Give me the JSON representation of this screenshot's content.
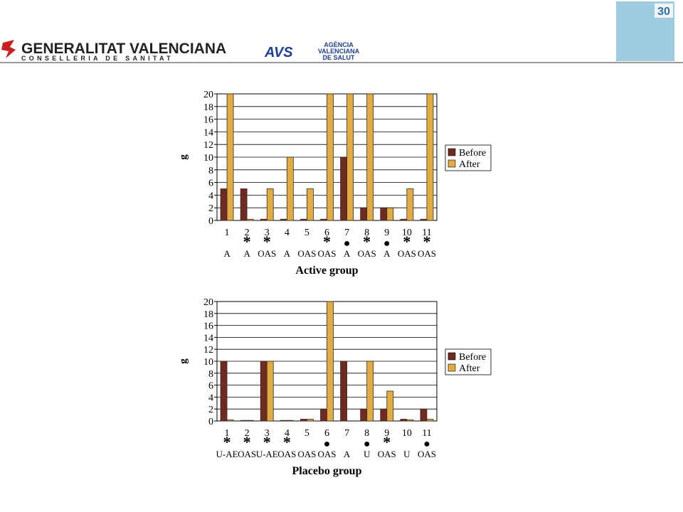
{
  "header": {
    "org_line1": "GENERALITAT VALENCIANA",
    "org_line2": "CONSELLERIA DE SANITAT",
    "agency_abbr": "AVS",
    "agency_line1": "AGÈNCIA",
    "agency_line2": "VALENCIANA",
    "agency_line3": "DE SALUT",
    "badge_number": "30"
  },
  "chart_data": [
    {
      "type": "bar",
      "x_label": "Active group",
      "y_label": "g",
      "categories": [
        "1",
        "2",
        "3",
        "4",
        "5",
        "6",
        "7",
        "8",
        "9",
        "10",
        "11"
      ],
      "markers": [
        null,
        "*",
        "*",
        null,
        null,
        "*",
        "●",
        "*",
        "●",
        "*",
        "*"
      ],
      "groups": [
        "A",
        "A",
        "OAS",
        "A",
        "OAS",
        "OAS",
        "A",
        "OAS",
        "A",
        "OAS",
        "OAS"
      ],
      "series": [
        {
          "name": "Before",
          "color": "#6e2b22",
          "values": [
            5,
            5,
            0.2,
            0.2,
            0.2,
            0.2,
            10,
            2,
            2,
            0.2,
            0.2
          ]
        },
        {
          "name": "After",
          "color": "#e2ac45",
          "values": [
            20,
            0.2,
            5,
            10,
            5,
            20,
            20,
            20,
            2,
            5,
            20
          ]
        }
      ],
      "ylim": [
        0,
        20
      ],
      "yticks": [
        0,
        2,
        4,
        6,
        8,
        10,
        12,
        14,
        16,
        18,
        20
      ],
      "grid": true,
      "legend": "right"
    },
    {
      "type": "bar",
      "x_label": "Placebo group",
      "y_label": "g",
      "categories": [
        "1",
        "2",
        "3",
        "4",
        "5",
        "6",
        "7",
        "8",
        "9",
        "10",
        "11"
      ],
      "markers": [
        "*",
        "*",
        "*",
        "*",
        null,
        "●",
        null,
        "●",
        "*",
        null,
        "●"
      ],
      "groups": [
        "U-AE",
        "OAS",
        "U-AE",
        "OAS",
        "OAS",
        "OAS",
        "A",
        "U",
        "OAS",
        "U",
        "OAS"
      ],
      "series": [
        {
          "name": "Before",
          "color": "#6e2b22",
          "values": [
            10,
            0.1,
            10,
            0.1,
            0.3,
            2,
            10,
            2,
            2,
            0.3,
            2
          ]
        },
        {
          "name": "After",
          "color": "#e2ac45",
          "values": [
            0.2,
            0.1,
            10,
            0.1,
            0.3,
            20,
            0,
            10,
            5,
            0.2,
            0.3
          ]
        }
      ],
      "ylim": [
        0,
        20
      ],
      "yticks": [
        0,
        2,
        4,
        6,
        8,
        10,
        12,
        14,
        16,
        18,
        20
      ],
      "grid": true,
      "legend": "right"
    }
  ]
}
